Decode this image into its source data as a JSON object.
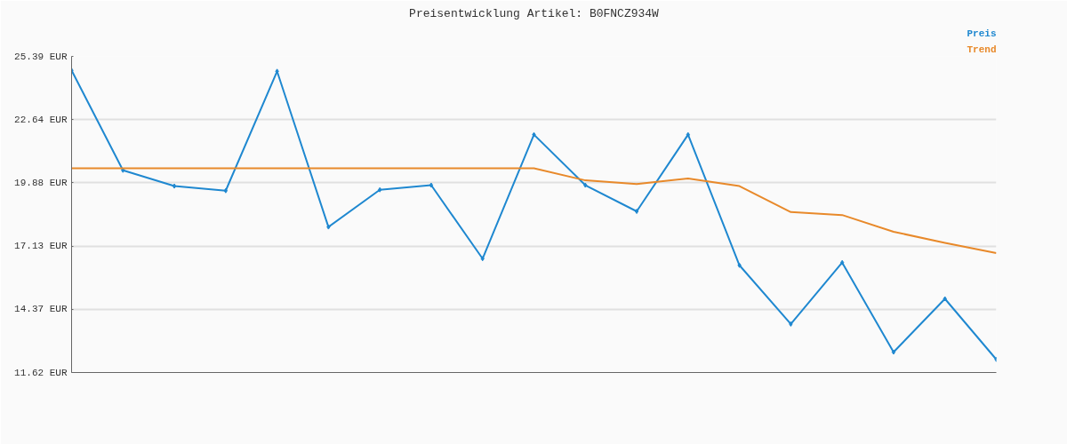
{
  "chart_data": {
    "type": "line",
    "title": "Preisentwicklung Artikel: B0FNCZ934W",
    "categories": [
      null,
      null,
      null,
      null,
      null,
      null,
      null,
      null,
      null,
      null,
      null,
      null,
      null,
      null,
      null,
      null,
      null,
      null,
      null
    ],
    "series": [
      {
        "name": "Preis",
        "color": "#1f88d0",
        "marker": "diamond",
        "values": [
          24.78,
          20.43,
          19.74,
          19.54,
          24.74,
          17.96,
          19.58,
          19.78,
          16.58,
          21.98,
          19.78,
          18.64,
          21.98,
          16.29,
          13.73,
          16.41,
          12.51,
          14.83,
          12.19
        ]
      },
      {
        "name": "Trend",
        "color": "#e8892a",
        "marker": "none",
        "values": [
          20.52,
          20.52,
          20.52,
          20.52,
          20.52,
          20.52,
          20.52,
          20.52,
          20.52,
          20.52,
          19.99,
          19.83,
          20.07,
          19.74,
          18.61,
          18.48,
          17.75,
          17.27,
          16.82
        ]
      }
    ],
    "ylim": [
      11.62,
      25.39
    ],
    "yticks": [
      {
        "value": 11.62,
        "label": "11.62 EUR"
      },
      {
        "value": 14.37,
        "label": "14.37 EUR"
      },
      {
        "value": 17.13,
        "label": "17.13 EUR"
      },
      {
        "value": 19.88,
        "label": "19.88 EUR"
      },
      {
        "value": 22.64,
        "label": "22.64 EUR"
      },
      {
        "value": 25.39,
        "label": "25.39 EUR"
      }
    ],
    "grid": "y",
    "line_style": "solid"
  }
}
